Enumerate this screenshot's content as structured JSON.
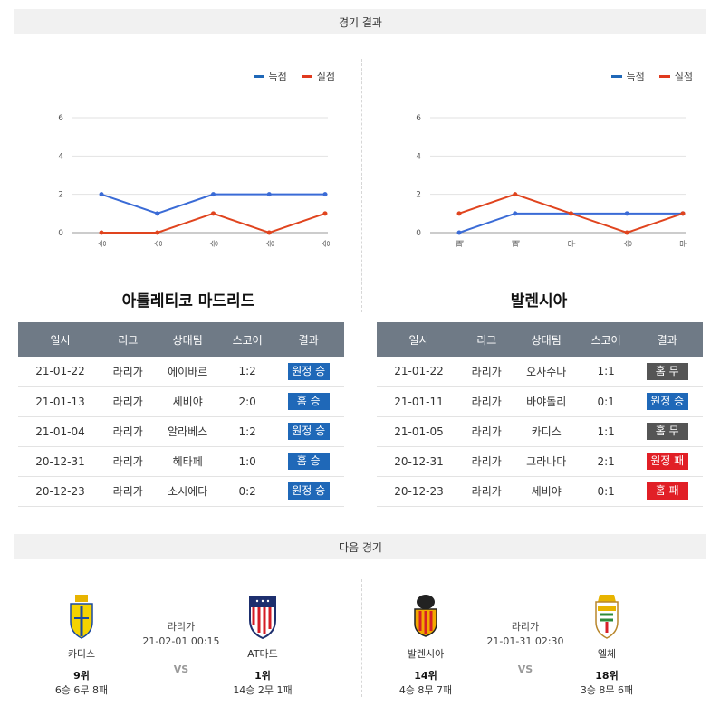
{
  "sections": {
    "results_title": "경기 결과",
    "next_title": "다음 경기"
  },
  "legend": {
    "scored": "득점",
    "conceded": "실점",
    "scored_color": "#1f68b8",
    "conceded_color": "#e03a1e"
  },
  "chart_data": [
    {
      "type": "line",
      "categories": [
        "승",
        "승",
        "승",
        "승",
        "승"
      ],
      "ylim": [
        0,
        6
      ],
      "yticks": [
        0,
        2,
        4,
        6
      ],
      "grid": true,
      "legend_position": "top-right",
      "series": [
        {
          "name": "득점",
          "color": "#3a6bd6",
          "values": [
            2,
            1,
            2,
            2,
            2
          ]
        },
        {
          "name": "실점",
          "color": "#e0441e",
          "values": [
            0,
            0,
            1,
            0,
            1
          ]
        }
      ]
    },
    {
      "type": "line",
      "categories": [
        "패",
        "패",
        "무",
        "승",
        "무"
      ],
      "ylim": [
        0,
        6
      ],
      "yticks": [
        0,
        2,
        4,
        6
      ],
      "grid": true,
      "legend_position": "top-right",
      "series": [
        {
          "name": "득점",
          "color": "#3a6bd6",
          "values": [
            0,
            1,
            1,
            1,
            1
          ]
        },
        {
          "name": "실점",
          "color": "#e0441e",
          "values": [
            1,
            2,
            1,
            0,
            1
          ]
        }
      ]
    }
  ],
  "teams": {
    "left": "아틀레티코 마드리드",
    "right": "발렌시아"
  },
  "table_headers": [
    "일시",
    "리그",
    "상대팀",
    "스코어",
    "결과"
  ],
  "results_left": [
    {
      "date": "21-01-22",
      "league": "라리가",
      "opponent": "에이바르",
      "score": "1:2",
      "result": "원정 승",
      "cls": "b-away-win"
    },
    {
      "date": "21-01-13",
      "league": "라리가",
      "opponent": "세비야",
      "score": "2:0",
      "result": "홈 승",
      "cls": "b-home-win"
    },
    {
      "date": "21-01-04",
      "league": "라리가",
      "opponent": "알라베스",
      "score": "1:2",
      "result": "원정 승",
      "cls": "b-away-win"
    },
    {
      "date": "20-12-31",
      "league": "라리가",
      "opponent": "헤타페",
      "score": "1:0",
      "result": "홈 승",
      "cls": "b-home-win"
    },
    {
      "date": "20-12-23",
      "league": "라리가",
      "opponent": "소시에다",
      "score": "0:2",
      "result": "원정 승",
      "cls": "b-away-win"
    }
  ],
  "results_right": [
    {
      "date": "21-01-22",
      "league": "라리가",
      "opponent": "오사수나",
      "score": "1:1",
      "result": "홈 무",
      "cls": "b-home-draw"
    },
    {
      "date": "21-01-11",
      "league": "라리가",
      "opponent": "바야돌리",
      "score": "0:1",
      "result": "원정 승",
      "cls": "b-away-win"
    },
    {
      "date": "21-01-05",
      "league": "라리가",
      "opponent": "카디스",
      "score": "1:1",
      "result": "홈 무",
      "cls": "b-home-draw"
    },
    {
      "date": "20-12-31",
      "league": "라리가",
      "opponent": "그라나다",
      "score": "2:1",
      "result": "원정 패",
      "cls": "b-away-lose"
    },
    {
      "date": "20-12-23",
      "league": "라리가",
      "opponent": "세비야",
      "score": "0:1",
      "result": "홈 패",
      "cls": "b-home-lose"
    }
  ],
  "next_left": {
    "home": {
      "name": "카디스",
      "rank": "9위",
      "record": "6승 6무 8패"
    },
    "away": {
      "name": "AT마드",
      "rank": "1위",
      "record": "14승 2무 1패"
    },
    "league": "라리가",
    "datetime": "21-02-01 00:15",
    "vs": "VS"
  },
  "next_right": {
    "home": {
      "name": "발렌시아",
      "rank": "14위",
      "record": "4승 8무 7패"
    },
    "away": {
      "name": "엘체",
      "rank": "18위",
      "record": "3승 8무 6패"
    },
    "league": "라리가",
    "datetime": "21-01-31 02:30",
    "vs": "VS"
  }
}
